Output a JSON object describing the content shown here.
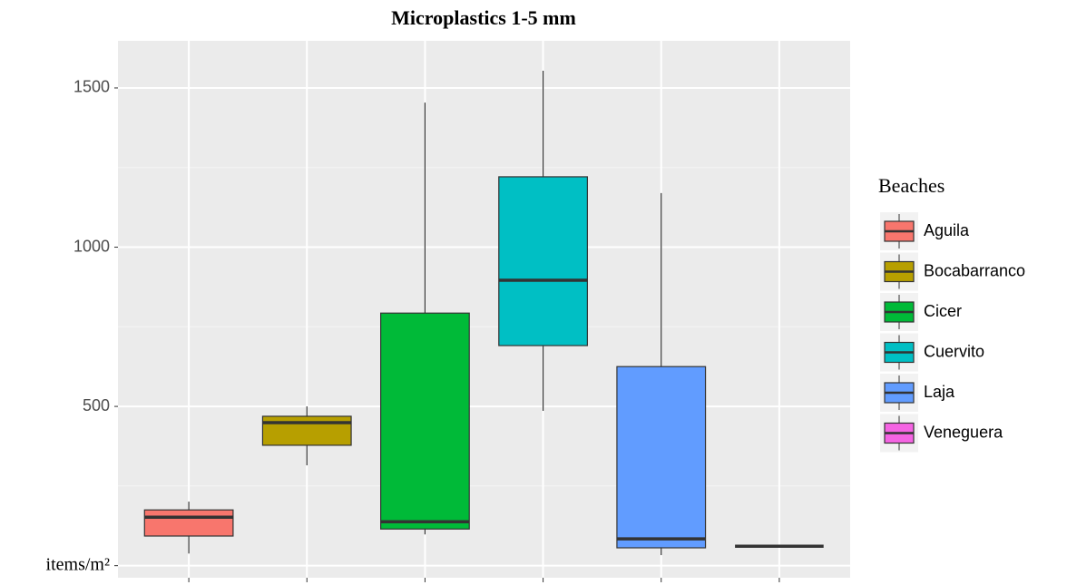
{
  "chart_data": {
    "type": "box",
    "title": "Microplastics 1-5 mm",
    "legend_title": "Beaches",
    "legend_position": "right",
    "ylim": [
      -38,
      1648
    ],
    "yticks": [
      {
        "value": 0,
        "label": "items/m²"
      },
      500,
      1000,
      1500
    ],
    "grid": true,
    "series": [
      {
        "name": "Aguila",
        "color": "#F8766D",
        "min": 38,
        "q1": 93,
        "median": 152,
        "q3": 175,
        "max": 201
      },
      {
        "name": "Bocabarranco",
        "color": "#B79F00",
        "min": 315,
        "q1": 378,
        "median": 449,
        "q3": 469,
        "max": 500
      },
      {
        "name": "Cicer",
        "color": "#00BA38",
        "min": 98,
        "q1": 115,
        "median": 138,
        "q3": 793,
        "max": 1454
      },
      {
        "name": "Cuervito",
        "color": "#00BFC4",
        "min": 486,
        "q1": 691,
        "median": 896,
        "q3": 1221,
        "max": 1554
      },
      {
        "name": "Laja",
        "color": "#619CFF",
        "min": 33,
        "q1": 56,
        "median": 84,
        "q3": 625,
        "max": 1170
      },
      {
        "name": "Veneguera",
        "color": "#F564E3",
        "min": 61,
        "q1": 61,
        "median": 61,
        "q3": 61,
        "max": 61
      }
    ]
  }
}
